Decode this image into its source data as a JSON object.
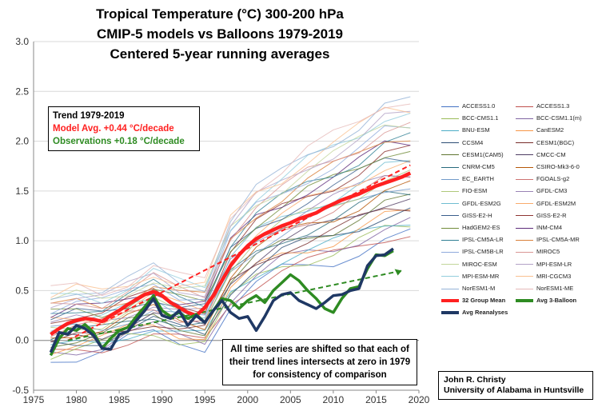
{
  "title_lines": [
    "Tropical Temperature (°C) 300-200 hPa",
    "CMIP-5 models vs Balloons 1979-2019",
    "Centered 5-year running averages"
  ],
  "trend_box": {
    "heading": "Trend 1979-2019",
    "model_line": "Model Avg. +0.44 °C/decade",
    "obs_line": "Observations +0.18 °C/decade",
    "model_color": "#ff2020",
    "obs_color": "#2e8b22"
  },
  "note_box": "All time series are shifted so that each of their trend lines intersects at zero in 1979 for consistency of comparison",
  "credit_box": {
    "line1": "John R. Christy",
    "line2": "University of Alabama in Huntsville"
  },
  "legend_entries": [
    {
      "label": "ACCESS1.0",
      "color": "#4472c4"
    },
    {
      "label": "ACCESS1.3",
      "color": "#c0504d"
    },
    {
      "label": "BCC-CMS1.1",
      "color": "#9bbb59"
    },
    {
      "label": "BCC-CSM1.1(m)",
      "color": "#8064a2"
    },
    {
      "label": "BNU-ESM",
      "color": "#4bacc6"
    },
    {
      "label": "CanESM2",
      "color": "#f79646"
    },
    {
      "label": "CCSM4",
      "color": "#2c4d75"
    },
    {
      "label": "CESM1(BGC)",
      "color": "#772c2a"
    },
    {
      "label": "CESM1(CAM5)",
      "color": "#5f7530"
    },
    {
      "label": "CMCC-CM",
      "color": "#4d3b62"
    },
    {
      "label": "CNRM-CM5",
      "color": "#276a7c"
    },
    {
      "label": "CSIRO-Mk3-6-0",
      "color": "#b65708"
    },
    {
      "label": "EC_EARTH",
      "color": "#729aca"
    },
    {
      "label": "FGOALS-g2",
      "color": "#cd7371"
    },
    {
      "label": "FIO-ESM",
      "color": "#afc97a"
    },
    {
      "label": "GFDL-CM3",
      "color": "#9983b5"
    },
    {
      "label": "GFDL-ESM2G",
      "color": "#6fbdd1"
    },
    {
      "label": "GFDL-ESM2M",
      "color": "#f9ab6b"
    },
    {
      "label": "GISS-E2-H",
      "color": "#3a5e8c"
    },
    {
      "label": "GISS-E2-R",
      "color": "#8e3532"
    },
    {
      "label": "HadGEM2-ES",
      "color": "#728c3a"
    },
    {
      "label": "INM-CM4",
      "color": "#5d2b7a"
    },
    {
      "label": "IPSL-CM5A-LR",
      "color": "#2f7f94"
    },
    {
      "label": "IPSL-CM5A-MR",
      "color": "#d9803a"
    },
    {
      "label": "IPSL-CM5B-LR",
      "color": "#8faadc"
    },
    {
      "label": "MIROC5",
      "color": "#d99694"
    },
    {
      "label": "MIROC-ESM",
      "color": "#c3d69b"
    },
    {
      "label": "MPI-ESM-LR",
      "color": "#b3a2c7"
    },
    {
      "label": "MPI-ESM-MR",
      "color": "#93cddd"
    },
    {
      "label": "MRI-CGCM3",
      "color": "#fac090"
    },
    {
      "label": "NorESM1-M",
      "color": "#95b3d7"
    },
    {
      "label": "NorESM1-ME",
      "color": "#e6b9b8"
    },
    {
      "label": "32 Group Mean",
      "color": "#ff2020",
      "bold": true
    },
    {
      "label": "Avg 3-Balloon",
      "color": "#2e8b22",
      "bold": true
    },
    {
      "label": "Avg Reanalyses",
      "color": "#1f3864",
      "bold": true
    }
  ],
  "chart_data": {
    "type": "line",
    "title": "Tropical Temperature (°C) 300-200 hPa CMIP-5 models vs Balloons 1979-2019 Centered 5-year running averages",
    "xlim": [
      1975,
      2020
    ],
    "ylim": [
      -0.5,
      3.0
    ],
    "x_ticks": [
      1975,
      1980,
      1985,
      1990,
      1995,
      2000,
      2005,
      2010,
      2015,
      2020
    ],
    "y_ticks": [
      "-0.5",
      "0.0",
      "0.5",
      "1.0",
      "1.5",
      "2.0",
      "2.5",
      "3.0"
    ],
    "grid": "horizontal",
    "legend_position": "right",
    "model_range": {
      "x": [
        1977,
        1980,
        1983,
        1986,
        1989,
        1992,
        1995,
        1998,
        2001,
        2004,
        2007,
        2010,
        2013,
        2016,
        2019
      ],
      "low": [
        -0.18,
        -0.15,
        -0.1,
        0.0,
        0.05,
        -0.02,
        -0.05,
        0.35,
        0.55,
        0.7,
        0.75,
        0.8,
        0.9,
        1.0,
        1.05
      ],
      "high": [
        0.48,
        0.55,
        0.5,
        0.6,
        0.75,
        0.62,
        0.58,
        1.25,
        1.55,
        1.7,
        1.9,
        2.05,
        2.2,
        2.4,
        2.42
      ]
    },
    "series": [
      {
        "name": "32 Group Mean",
        "x": [
          1977,
          1978,
          1979,
          1980,
          1981,
          1982,
          1983,
          1984,
          1985,
          1986,
          1987,
          1988,
          1989,
          1990,
          1991,
          1992,
          1993,
          1994,
          1995,
          1996,
          1997,
          1998,
          1999,
          2000,
          2001,
          2002,
          2003,
          2004,
          2005,
          2006,
          2007,
          2008,
          2009,
          2010,
          2011,
          2012,
          2013,
          2014,
          2015,
          2016,
          2017,
          2018,
          2019
        ],
        "values": [
          0.06,
          0.12,
          0.17,
          0.2,
          0.22,
          0.21,
          0.19,
          0.25,
          0.3,
          0.36,
          0.41,
          0.46,
          0.49,
          0.45,
          0.38,
          0.33,
          0.28,
          0.25,
          0.33,
          0.45,
          0.6,
          0.75,
          0.86,
          0.95,
          1.02,
          1.07,
          1.11,
          1.15,
          1.18,
          1.22,
          1.25,
          1.28,
          1.33,
          1.37,
          1.41,
          1.44,
          1.47,
          1.51,
          1.55,
          1.58,
          1.61,
          1.64,
          1.68
        ]
      },
      {
        "name": "Avg 3-Balloon",
        "x": [
          1977,
          1978,
          1979,
          1980,
          1981,
          1982,
          1983,
          1984,
          1985,
          1986,
          1987,
          1988,
          1989,
          1990,
          1991,
          1992,
          1993,
          1994,
          1995,
          1996,
          1997,
          1998,
          1999,
          2000,
          2001,
          2002,
          2003,
          2004,
          2005,
          2006,
          2007,
          2008,
          2009,
          2010,
          2011,
          2012,
          2013,
          2014,
          2015,
          2016,
          2017
        ],
        "values": [
          -0.15,
          0.02,
          0.12,
          0.1,
          0.16,
          0.08,
          -0.08,
          0.02,
          0.1,
          0.13,
          0.24,
          0.34,
          0.45,
          0.3,
          0.24,
          0.28,
          0.22,
          0.26,
          0.18,
          0.3,
          0.42,
          0.4,
          0.32,
          0.4,
          0.45,
          0.38,
          0.5,
          0.58,
          0.66,
          0.6,
          0.5,
          0.42,
          0.32,
          0.28,
          0.42,
          0.52,
          0.54,
          0.72,
          0.86,
          0.85,
          0.9
        ]
      },
      {
        "name": "Avg Reanalyses",
        "x": [
          1977,
          1978,
          1979,
          1980,
          1981,
          1982,
          1983,
          1984,
          1985,
          1986,
          1987,
          1988,
          1989,
          1990,
          1991,
          1992,
          1993,
          1994,
          1995,
          1996,
          1997,
          1998,
          1999,
          2000,
          2001,
          2002,
          2003,
          2004,
          2005,
          2006,
          2007,
          2008,
          2009,
          2010,
          2011,
          2012,
          2013,
          2014,
          2015,
          2016,
          2017
        ],
        "values": [
          -0.12,
          0.08,
          0.06,
          0.15,
          0.12,
          0.05,
          -0.08,
          -0.09,
          0.06,
          0.09,
          0.2,
          0.3,
          0.42,
          0.25,
          0.22,
          0.3,
          0.15,
          0.25,
          0.18,
          0.3,
          0.4,
          0.28,
          0.22,
          0.24,
          0.1,
          0.24,
          0.4,
          0.46,
          0.48,
          0.4,
          0.36,
          0.32,
          0.38,
          0.45,
          0.46,
          0.5,
          0.52,
          0.75,
          0.85,
          0.86,
          0.92
        ]
      }
    ],
    "trend_lines": [
      {
        "name": "Model Avg. trend",
        "slope_per_decade": 0.44,
        "x": [
          1979,
          2019
        ],
        "values": [
          0.0,
          1.76
        ],
        "style": "dashed",
        "color": "#ff2020"
      },
      {
        "name": "Observations trend",
        "slope_per_decade": 0.18,
        "x": [
          1979,
          2018
        ],
        "values": [
          0.0,
          0.7
        ],
        "style": "dashed-arrow",
        "color": "#2e8b22"
      }
    ]
  }
}
